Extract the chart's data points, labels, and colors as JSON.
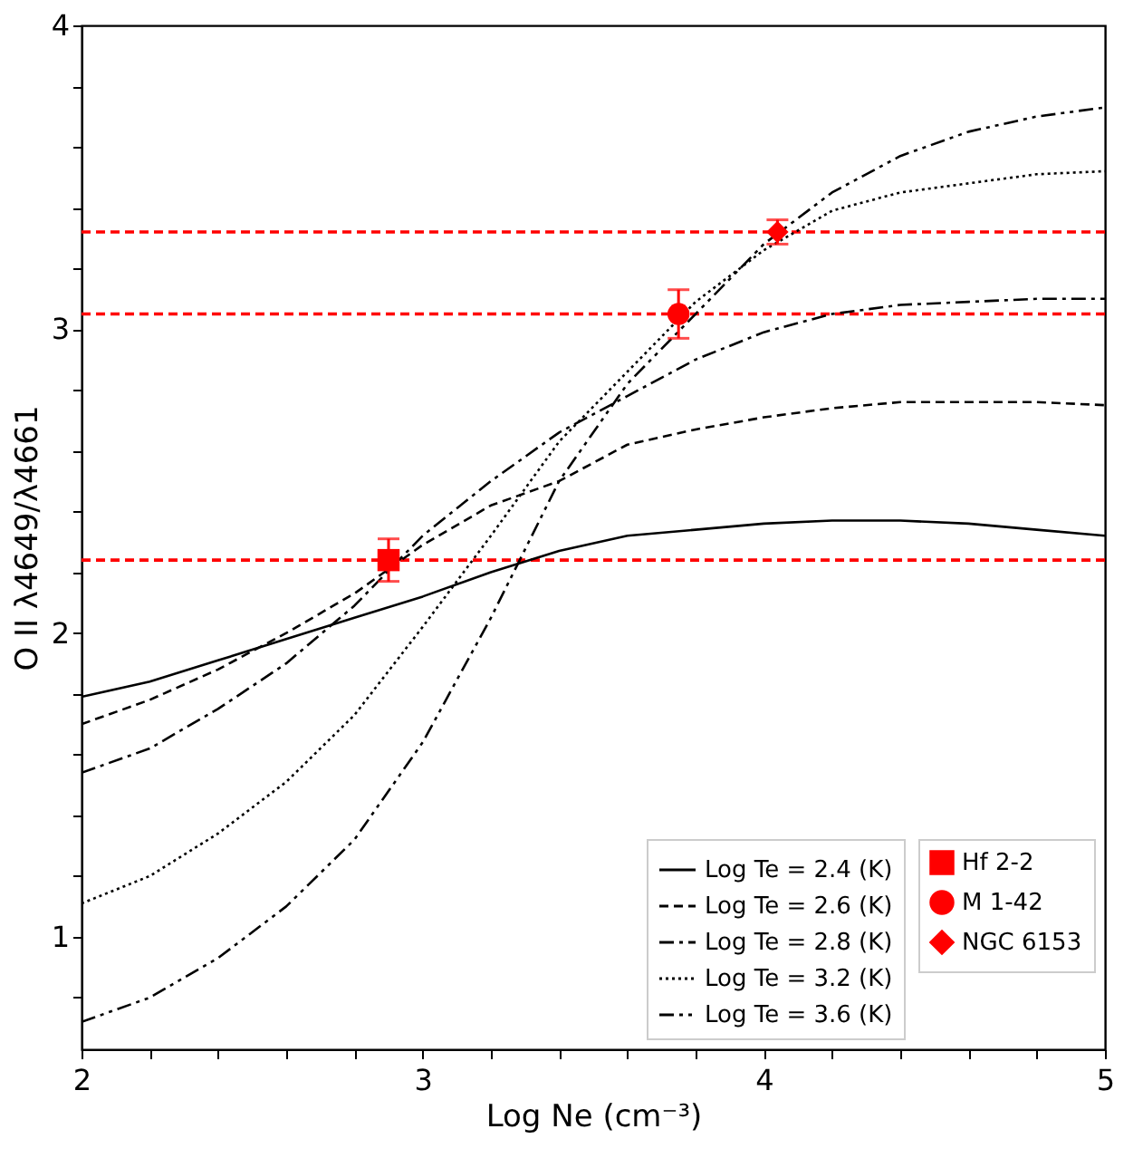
{
  "chart_data": {
    "type": "line",
    "xlabel": "Log Ne (cm⁻³)",
    "ylabel": "O II λ4649/λ4661",
    "xlim": [
      2,
      5
    ],
    "ylim": [
      0.63,
      4
    ],
    "xticks": [
      2,
      {
        "value": 2.2,
        "label": null
      },
      {
        "value": 2.4,
        "label": null
      },
      {
        "value": 2.6,
        "label": null
      },
      {
        "value": 2.8,
        "label": null
      },
      3,
      {
        "value": 3.2,
        "label": null
      },
      {
        "value": 3.4,
        "label": null
      },
      {
        "value": 3.6,
        "label": null
      },
      {
        "value": 3.8,
        "label": null
      },
      4,
      {
        "value": 4.2,
        "label": null
      },
      {
        "value": 4.4,
        "label": null
      },
      {
        "value": 4.6,
        "label": null
      },
      {
        "value": 4.8,
        "label": null
      },
      5
    ],
    "yticks": [
      {
        "value": 0.8,
        "label": null
      },
      1,
      {
        "value": 1.2,
        "label": null
      },
      {
        "value": 1.4,
        "label": null
      },
      {
        "value": 1.6,
        "label": null
      },
      {
        "value": 1.8,
        "label": null
      },
      2,
      {
        "value": 2.2,
        "label": null
      },
      {
        "value": 2.4,
        "label": null
      },
      {
        "value": 2.6,
        "label": null
      },
      {
        "value": 2.8,
        "label": null
      },
      3,
      {
        "value": 3.2,
        "label": null
      },
      {
        "value": 3.4,
        "label": null
      },
      {
        "value": 3.6,
        "label": null
      },
      {
        "value": 3.8,
        "label": null
      },
      4
    ],
    "x": [
      2.0,
      2.2,
      2.4,
      2.6,
      2.8,
      3.0,
      3.2,
      3.4,
      3.6,
      3.8,
      4.0,
      4.2,
      4.4,
      4.6,
      4.8,
      5.0
    ],
    "grid": false,
    "legend": "bottom right",
    "series": [
      {
        "name": "Log Te = 2.4 (K)",
        "line_style": "solid",
        "color": "#000000",
        "values": [
          1.79,
          1.84,
          1.91,
          1.98,
          2.05,
          2.12,
          2.2,
          2.27,
          2.32,
          2.34,
          2.36,
          2.37,
          2.37,
          2.36,
          2.34,
          2.32
        ]
      },
      {
        "name": "Log Te = 2.6 (K)",
        "line_style": "dashed",
        "color": "#000000",
        "values": [
          1.7,
          1.78,
          1.88,
          2.0,
          2.13,
          2.29,
          2.42,
          2.5,
          2.62,
          2.67,
          2.71,
          2.74,
          2.76,
          2.76,
          2.76,
          2.75
        ]
      },
      {
        "name": "Log Te = 2.8 (K)",
        "line_style": "dashdot",
        "color": "#000000",
        "values": [
          1.54,
          1.62,
          1.75,
          1.9,
          2.09,
          2.32,
          2.5,
          2.66,
          2.78,
          2.9,
          2.99,
          3.05,
          3.08,
          3.09,
          3.1,
          3.1
        ]
      },
      {
        "name": "Log Te = 3.2 (K)",
        "line_style": "dotted",
        "color": "#000000",
        "values": [
          1.11,
          1.2,
          1.34,
          1.51,
          1.73,
          2.02,
          2.32,
          2.63,
          2.86,
          3.09,
          3.26,
          3.39,
          3.45,
          3.48,
          3.51,
          3.52
        ]
      },
      {
        "name": "Log Te = 3.6 (K)",
        "line_style": "dashdotdot",
        "color": "#000000",
        "values": [
          0.72,
          0.8,
          0.93,
          1.1,
          1.32,
          1.64,
          2.05,
          2.5,
          2.82,
          3.05,
          3.28,
          3.45,
          3.57,
          3.65,
          3.7,
          3.73
        ]
      },
      {
        "name": "Hf 2-2",
        "type": "scatter",
        "marker": "square",
        "color": "#ff0000",
        "x": [
          2.9
        ],
        "values": [
          2.24
        ],
        "errors": [
          0.07
        ]
      },
      {
        "name": "M 1-42",
        "type": "scatter",
        "marker": "circle",
        "color": "#ff0000",
        "x": [
          3.75
        ],
        "values": [
          3.05
        ],
        "errors": [
          0.08
        ]
      },
      {
        "name": "NGC 6153",
        "type": "scatter",
        "marker": "diamond",
        "color": "#ff0000",
        "x": [
          4.04
        ],
        "values": [
          3.32
        ],
        "errors": [
          0.04
        ]
      }
    ],
    "ref_lines": [
      {
        "axis": "y",
        "value": 3.32,
        "color": "#ff0000",
        "line_style": "dashed"
      },
      {
        "axis": "y",
        "value": 3.05,
        "color": "#ff0000",
        "line_style": "dashed"
      },
      {
        "axis": "y",
        "value": 2.24,
        "color": "#ff0000",
        "line_style": "dashed"
      }
    ]
  }
}
